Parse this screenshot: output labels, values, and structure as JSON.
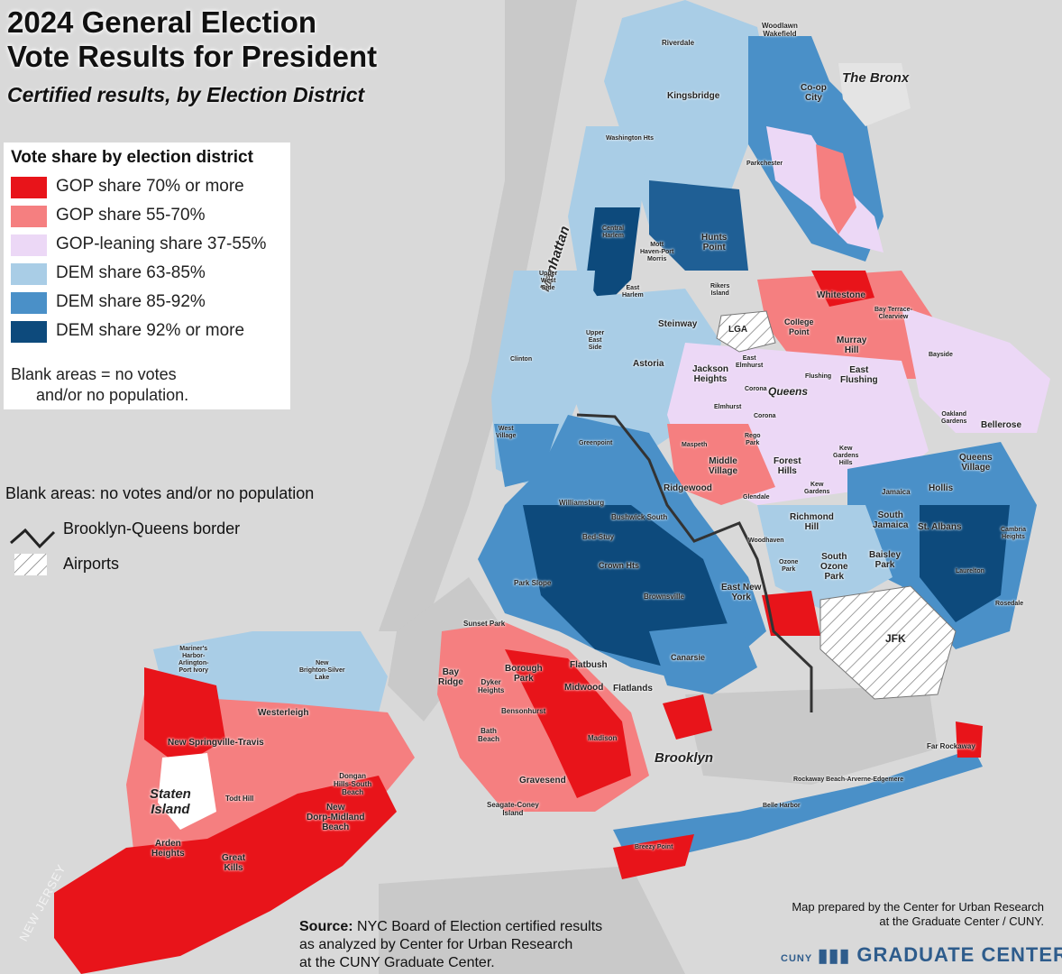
{
  "title_line1": "2024 General Election",
  "title_line2": "Vote Results for President",
  "subtitle": "Certified results, by Election District",
  "colors": {
    "gop70": "#e8141a",
    "gop55": "#f57f80",
    "gop37": "#ecd8f6",
    "dem63": "#a9cde6",
    "dem85": "#4a90c8",
    "dem92": "#0d4a7c",
    "background": "#d9d9d9",
    "water": "#c8c8c8"
  },
  "legend": {
    "title": "Vote share by election district",
    "items": [
      {
        "label": "GOP share 70% or more",
        "color": "#e8141a"
      },
      {
        "label": "GOP share 55-70%",
        "color": "#f57f80"
      },
      {
        "label": "GOP-leaning share 37-55%",
        "color": "#ecd8f6"
      },
      {
        "label": "DEM share 63-85%",
        "color": "#a9cde6"
      },
      {
        "label": "DEM share 85-92%",
        "color": "#4a90c8"
      },
      {
        "label": "DEM share 92% or more",
        "color": "#0d4a7c"
      }
    ],
    "note_line1": "Blank areas = no votes",
    "note_line2": "and/or no population."
  },
  "aux_legend": {
    "blank": "Blank areas: no votes and/or no population",
    "border": "Brooklyn-Queens border",
    "airports": "Airports"
  },
  "places": {
    "bronx": "The Bronx",
    "manhattan": "Manhattan",
    "queens": "Queens",
    "brooklyn": "Brooklyn",
    "staten_line1": "Staten",
    "staten_line2": "Island",
    "riverdale": "Riverdale",
    "woodlawn_line1": "Woodlawn",
    "woodlawn_line2": "Wakefield",
    "coop_line1": "Co-op",
    "coop_line2": "City",
    "kingsbridge": "Kingsbridge",
    "washington_hts": "Washington Hts",
    "parkchester": "Parkchester",
    "central_line1": "Central",
    "central_line2": "Harlem",
    "mott_line1": "Mott",
    "mott_line2": "Haven-Port",
    "mott_line3": "Morris",
    "hunts_line1": "Hunts",
    "hunts_line2": "Point",
    "uws_line1": "Upper",
    "uws_line2": "West",
    "uws_line3": "Side",
    "east_harlem_line1": "East",
    "east_harlem_line2": "Harlem",
    "rikers_line1": "Rikers",
    "rikers_line2": "Island",
    "whitestone": "Whitestone",
    "bay_terrace_line1": "Bay Terrace-",
    "bay_terrace_line2": "Clearview",
    "college_point_line1": "College",
    "college_point_line2": "Point",
    "steinway": "Steinway",
    "ues_line1": "Upper",
    "ues_line2": "East",
    "ues_line3": "Side",
    "lga": "LGA",
    "murray_line1": "Murray",
    "murray_line2": "Hill",
    "bayside": "Bayside",
    "clinton": "Clinton",
    "astoria": "Astoria",
    "jackson_line1": "Jackson",
    "jackson_line2": "Heights",
    "east_elmhurst_line1": "East",
    "east_elmhurst_line2": "Elmhurst",
    "flushing": "Flushing",
    "east_flushing_line1": "East",
    "east_flushing_line2": "Flushing",
    "corona": "Corona",
    "elmhurst": "Elmhurst",
    "corona2": "Corona",
    "oakland_line1": "Oakland",
    "oakland_line2": "Gardens",
    "bellerose": "Bellerose",
    "west_village_line1": "West",
    "west_village_line2": "Village",
    "greenpoint": "Greenpoint",
    "maspeth": "Maspeth",
    "rego_line1": "Rego",
    "rego_line2": "Park",
    "kew_hills_line1": "Kew",
    "kew_hills_line2": "Gardens",
    "kew_hills_line3": "Hills",
    "middle_line1": "Middle",
    "middle_line2": "Village",
    "forest_line1": "Forest",
    "forest_line2": "Hills",
    "queens_village_line1": "Queens",
    "queens_village_line2": "Village",
    "kew_gardens_line1": "Kew",
    "kew_gardens_line2": "Gardens",
    "ridgewood": "Ridgewood",
    "glendale": "Glendale",
    "jamaica": "Jamaica",
    "hollis": "Hollis",
    "williamsburg": "Williamsburg",
    "bushwick": "Bushwick South",
    "richmond_line1": "Richmond",
    "richmond_line2": "Hill",
    "south_jamaica_line1": "South",
    "south_jamaica_line2": "Jamaica",
    "st_albans": "St. Albans",
    "cambria_line1": "Cambria",
    "cambria_line2": "Heights",
    "bed_stuy": "Bed-Stuy",
    "woodhaven": "Woodhaven",
    "crown_hts": "Crown Hts",
    "ozone_park_line1": "Ozone",
    "ozone_park_line2": "Park",
    "south_ozone_line1": "South",
    "south_ozone_line2": "Ozone",
    "south_ozone_line3": "Park",
    "baisley_line1": "Baisley",
    "baisley_line2": "Park",
    "laurelton": "Laurelton",
    "park_slope": "Park Slope",
    "brownsville": "Brownsville",
    "east_ny_line1": "East New",
    "east_ny_line2": "York",
    "rosedale": "Rosedale",
    "sunset_park": "Sunset Park",
    "jfk": "JFK",
    "mariners_line1": "Mariner's",
    "mariners_line2": "Harbor-",
    "mariners_line3": "Arlington-",
    "mariners_line4": "Port Ivory",
    "new_brighton_line1": "New",
    "new_brighton_line2": "Brighton-Silver",
    "new_brighton_line3": "Lake",
    "canarsie": "Canarsie",
    "borough_park_line1": "Borough",
    "borough_park_line2": "Park",
    "bay_ridge_line1": "Bay",
    "bay_ridge_line2": "Ridge",
    "dyker_line1": "Dyker",
    "dyker_line2": "Heights",
    "flatbush": "Flatbush",
    "midwood": "Midwood",
    "flatlands": "Flatlands",
    "westerleigh": "Westerleigh",
    "bensonhurst": "Bensonhurst",
    "bath_line1": "Bath",
    "bath_line2": "Beach",
    "madison": "Madison",
    "new_springville": "New Springville-Travis",
    "far_rockaway": "Far Rockaway",
    "dongan_line1": "Dongan",
    "dongan_line2": "Hills-South",
    "dongan_line3": "Beach",
    "gravesend": "Gravesend",
    "rockaway_beach": "Rockaway Beach-Arverne-Edgemere",
    "todt_hill": "Todt Hill",
    "new_dorp_line1": "New",
    "new_dorp_line2": "Dorp-Midland",
    "new_dorp_line3": "Beach",
    "seagate_line1": "Seagate-Coney",
    "seagate_line2": "Island",
    "belle_harbor": "Belle Harbor",
    "arden_line1": "Arden",
    "arden_line2": "Heights",
    "great_kills_line1": "Great",
    "great_kills_line2": "Kills",
    "breezy_point": "Breezy Point",
    "new_jersey": "NEW JERSEY"
  },
  "source_bold": "Source:",
  "source_line1": " NYC Board of Election certified results",
  "source_line2": "as analyzed by Center for Urban Research",
  "source_line3": "at the CUNY Graduate Center.",
  "credit_line1": "Map prepared by the Center for Urban Research",
  "credit_line2": "at the Graduate Center / CUNY.",
  "logo_text": "GRADUATE CENTER",
  "logo_mark": "CUNY"
}
